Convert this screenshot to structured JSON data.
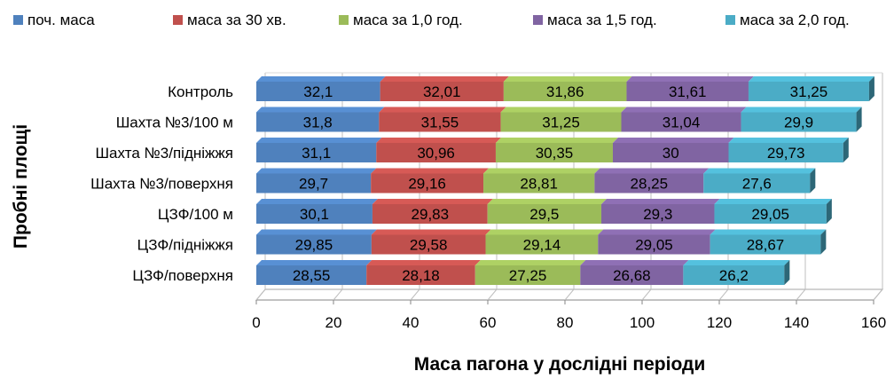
{
  "chart_data": {
    "type": "bar",
    "orientation": "horizontal",
    "stacked": true,
    "style": "3d",
    "title": "",
    "xlabel": "Маса пагона у дослідні періоди",
    "ylabel": "Пробні площі",
    "xlim": [
      0,
      160
    ],
    "xticks": [
      "0",
      "20",
      "40",
      "60",
      "80",
      "100",
      "120",
      "140",
      "160"
    ],
    "grid": true,
    "legend_position": "top",
    "categories": [
      "Контроль",
      "Шахта №3/100 м",
      "Шахта №3/підніжжя",
      "Шахта №3/поверхня",
      "ЦЗФ/100 м",
      "ЦЗФ/підніжжя",
      "ЦЗФ/поверхня"
    ],
    "series": [
      {
        "name": "поч. маса",
        "color": "#4F81BD",
        "values": [
          32.1,
          31.8,
          31.1,
          29.7,
          30.1,
          29.85,
          28.55
        ],
        "labels": [
          "32,1",
          "31,8",
          "31,1",
          "29,7",
          "30,1",
          "29,85",
          "28,55"
        ]
      },
      {
        "name": "маса за 30 хв.",
        "color": "#C0504D",
        "values": [
          32.01,
          31.55,
          30.96,
          29.16,
          29.83,
          29.58,
          28.18
        ],
        "labels": [
          "32,01",
          "31,55",
          "30,96",
          "29,16",
          "29,83",
          "29,58",
          "28,18"
        ]
      },
      {
        "name": "маса за 1,0 год.",
        "color": "#9BBB59",
        "values": [
          31.86,
          31.25,
          30.35,
          28.81,
          29.5,
          29.14,
          27.25
        ],
        "labels": [
          "31,86",
          "31,25",
          "30,35",
          "28,81",
          "29,5",
          "29,14",
          "27,25"
        ]
      },
      {
        "name": "маса за 1,5 год.",
        "color": "#8064A2",
        "values": [
          31.61,
          31.04,
          30,
          28.25,
          29.3,
          29.05,
          26.68
        ],
        "labels": [
          "31,61",
          "31,04",
          "30",
          "28,25",
          "29,3",
          "29,05",
          "26,68"
        ]
      },
      {
        "name": "маса за 2,0 год.",
        "color": "#4BACC6",
        "values": [
          31.25,
          29.9,
          29.73,
          27.6,
          29.05,
          28.67,
          26.2
        ],
        "labels": [
          "31,25",
          "29,9",
          "29,73",
          "27,6",
          "29,05",
          "28,67",
          "26,2"
        ]
      }
    ]
  }
}
